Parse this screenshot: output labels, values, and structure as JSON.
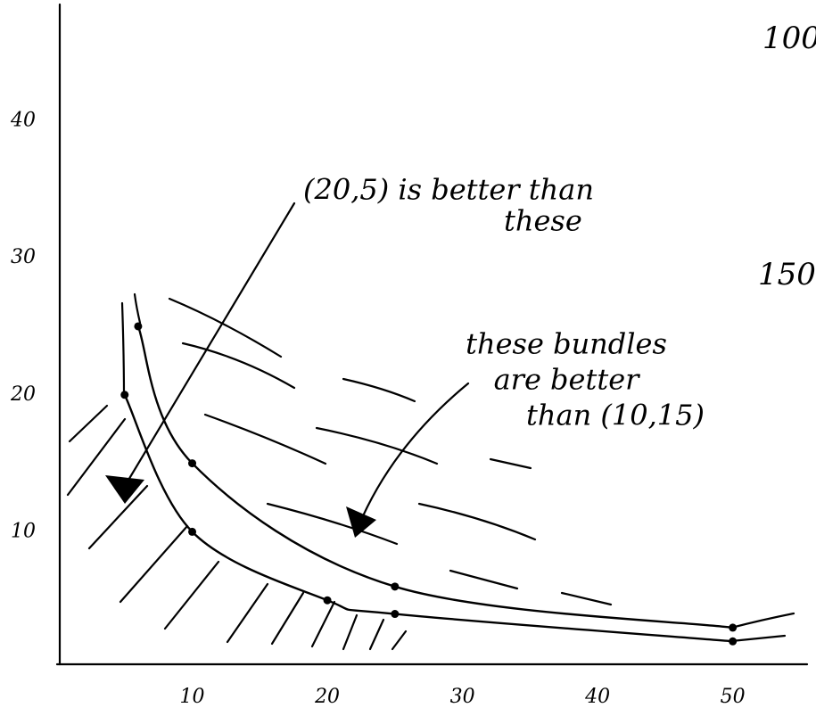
{
  "chart_data": {
    "type": "line",
    "series": [
      {
        "name": "100",
        "color": "#000000",
        "x": [
          5,
          10,
          20,
          25,
          50
        ],
        "values": [
          20,
          10,
          5,
          4,
          2
        ]
      },
      {
        "name": "150",
        "color": "#000000",
        "x": [
          6,
          10,
          25,
          50
        ],
        "values": [
          25,
          15,
          6,
          3
        ]
      }
    ],
    "xlim": [
      0,
      55.5
    ],
    "ylim": [
      0,
      48.5
    ],
    "xticks": [
      10,
      20,
      30,
      40,
      50
    ],
    "yticks": [
      10,
      20,
      30,
      40
    ],
    "annotations": [
      {
        "lines": [
          "(20,5) is better than",
          "these"
        ]
      },
      {
        "lines": [
          "these bundles",
          "are better",
          "than (10,15)"
        ]
      }
    ]
  }
}
